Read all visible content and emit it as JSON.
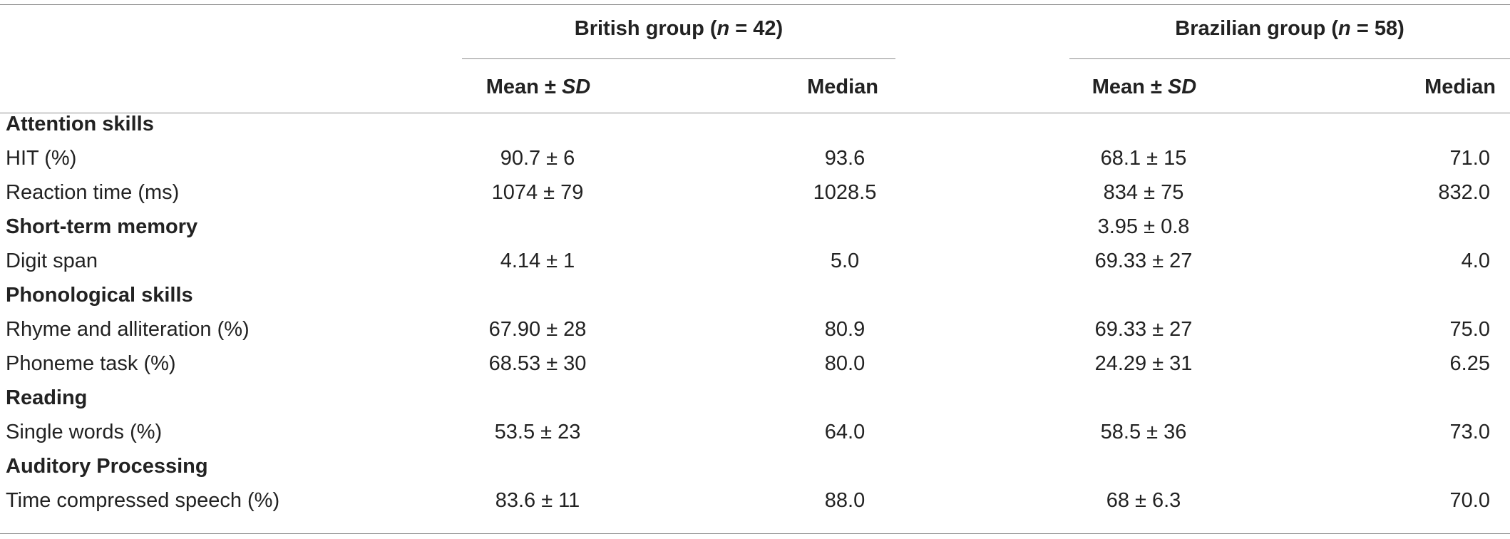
{
  "groups": [
    {
      "prefix": "British group (",
      "n": "n",
      "suffix": " = 42)"
    },
    {
      "prefix": "Brazilian group (",
      "n": "n",
      "suffix": " = 58)"
    }
  ],
  "subheaders": {
    "mean_prefix": "Mean ± ",
    "mean_sd": "SD",
    "median": "Median"
  },
  "rows": [
    {
      "type": "section",
      "label": "Attention skills"
    },
    {
      "type": "data",
      "label": "HIT (%)",
      "cells": [
        "90.7 ± 6",
        "93.6",
        "68.1 ± 15",
        "71.0"
      ]
    },
    {
      "type": "data",
      "label": "Reaction time (ms)",
      "cells": [
        "1074 ± 79",
        "1028.5",
        "834 ± 75",
        "832.0"
      ]
    },
    {
      "type": "section",
      "label": "Short-term memory",
      "extra": "3.95 ± 0.8"
    },
    {
      "type": "data",
      "label": "Digit span",
      "cells": [
        "4.14 ± 1",
        "5.0",
        "69.33 ± 27",
        "4.0"
      ]
    },
    {
      "type": "section",
      "label": "Phonological skills"
    },
    {
      "type": "data",
      "label": "Rhyme and alliteration (%)",
      "cells": [
        "67.90 ± 28",
        "80.9",
        "69.33 ± 27",
        "75.0"
      ]
    },
    {
      "type": "data",
      "label": "Phoneme task (%)",
      "cells": [
        "68.53 ± 30",
        "80.0",
        "24.29 ± 31",
        "6.25"
      ]
    },
    {
      "type": "section",
      "label": "Reading"
    },
    {
      "type": "data",
      "label": "Single words (%)",
      "cells": [
        "53.5 ± 23",
        "64.0",
        "58.5 ± 36",
        "73.0"
      ]
    },
    {
      "type": "section",
      "label": "Auditory Processing"
    },
    {
      "type": "data",
      "label": "Time compressed speech (%)",
      "cells": [
        "83.6 ± 11",
        "88.0",
        "68 ± 6.3",
        "70.0"
      ]
    }
  ]
}
